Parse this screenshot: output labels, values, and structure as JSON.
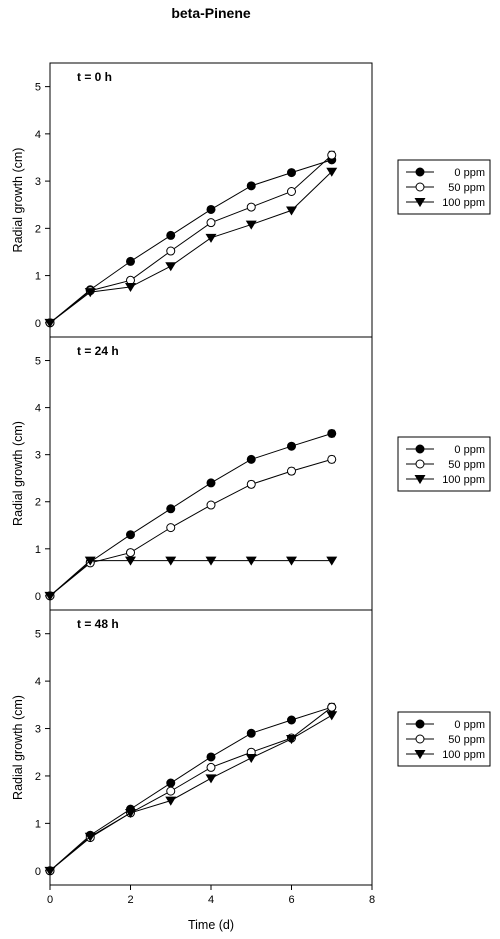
{
  "title": "beta-Pinene",
  "xlabel": "Time (d)",
  "chart_data": [
    {
      "type": "line",
      "panel_label": "t = 0 h",
      "ylabel": "Radial growth (cm)",
      "xlim": [
        0,
        8
      ],
      "ylim": [
        -0.3,
        5.5
      ],
      "xticks": [
        0,
        2,
        4,
        6,
        8
      ],
      "yticks": [
        0,
        1,
        2,
        3,
        4,
        5
      ],
      "x": [
        0,
        1,
        2,
        3,
        4,
        5,
        6,
        7
      ],
      "legend": "right",
      "series": [
        {
          "name": "0 ppm",
          "marker": "filled-circle",
          "values": [
            0,
            0.7,
            1.3,
            1.85,
            2.4,
            2.9,
            3.18,
            3.45
          ],
          "errors": [
            0,
            0,
            0,
            0,
            0,
            0,
            0,
            0.05
          ]
        },
        {
          "name": "50 ppm",
          "marker": "open-circle",
          "values": [
            0,
            0.68,
            0.9,
            1.52,
            2.12,
            2.45,
            2.78,
            3.55
          ],
          "errors": [
            0,
            0,
            0,
            0,
            0,
            0,
            0,
            0.08
          ]
        },
        {
          "name": "100 ppm",
          "marker": "filled-triangle-down",
          "values": [
            0,
            0.65,
            0.76,
            1.2,
            1.8,
            2.08,
            2.38,
            3.2
          ],
          "errors": [
            0,
            0,
            0,
            0,
            0,
            0,
            0,
            0
          ]
        }
      ]
    },
    {
      "type": "line",
      "panel_label": "t = 24 h",
      "ylabel": "Radial growth (cm)",
      "xlim": [
        0,
        8
      ],
      "ylim": [
        -0.3,
        5.5
      ],
      "xticks": [
        0,
        2,
        4,
        6,
        8
      ],
      "yticks": [
        0,
        1,
        2,
        3,
        4,
        5
      ],
      "x": [
        0,
        1,
        2,
        3,
        4,
        5,
        6,
        7
      ],
      "legend": "right",
      "series": [
        {
          "name": "0 ppm",
          "marker": "filled-circle",
          "values": [
            0,
            0.72,
            1.3,
            1.85,
            2.4,
            2.9,
            3.18,
            3.45
          ],
          "errors": [
            0,
            0,
            0,
            0,
            0,
            0,
            0,
            0.07
          ]
        },
        {
          "name": "50 ppm",
          "marker": "open-circle",
          "values": [
            0,
            0.7,
            0.92,
            1.45,
            1.93,
            2.37,
            2.65,
            2.9
          ],
          "errors": [
            0,
            0,
            0,
            0,
            0,
            0.07,
            0.07,
            0.07
          ]
        },
        {
          "name": "100 ppm",
          "marker": "filled-triangle-down",
          "values": [
            0,
            0.75,
            0.75,
            0.75,
            0.75,
            0.75,
            0.75,
            0.75
          ],
          "errors": [
            0,
            0,
            0,
            0,
            0,
            0,
            0,
            0
          ]
        }
      ]
    },
    {
      "type": "line",
      "panel_label": "t = 48 h",
      "ylabel": "Radial growth (cm)",
      "xlim": [
        0,
        8
      ],
      "ylim": [
        -0.3,
        5.5
      ],
      "xticks": [
        0,
        2,
        4,
        6,
        8
      ],
      "yticks": [
        0,
        1,
        2,
        3,
        4,
        5
      ],
      "x": [
        0,
        1,
        2,
        3,
        4,
        5,
        6,
        7
      ],
      "legend": "right",
      "series": [
        {
          "name": "0 ppm",
          "marker": "filled-circle",
          "values": [
            0,
            0.75,
            1.3,
            1.85,
            2.4,
            2.9,
            3.18,
            3.45
          ],
          "errors": [
            0,
            0,
            0,
            0,
            0,
            0,
            0,
            0
          ]
        },
        {
          "name": "50 ppm",
          "marker": "open-circle",
          "values": [
            0,
            0.7,
            1.22,
            1.68,
            2.18,
            2.5,
            2.8,
            3.45
          ],
          "errors": [
            0,
            0,
            0,
            0,
            0,
            0,
            0,
            0.08
          ]
        },
        {
          "name": "100 ppm",
          "marker": "filled-triangle-down",
          "values": [
            0,
            0.72,
            1.22,
            1.48,
            1.95,
            2.38,
            2.78,
            3.28
          ],
          "errors": [
            0,
            0,
            0,
            0,
            0,
            0,
            0,
            0
          ]
        }
      ]
    }
  ]
}
